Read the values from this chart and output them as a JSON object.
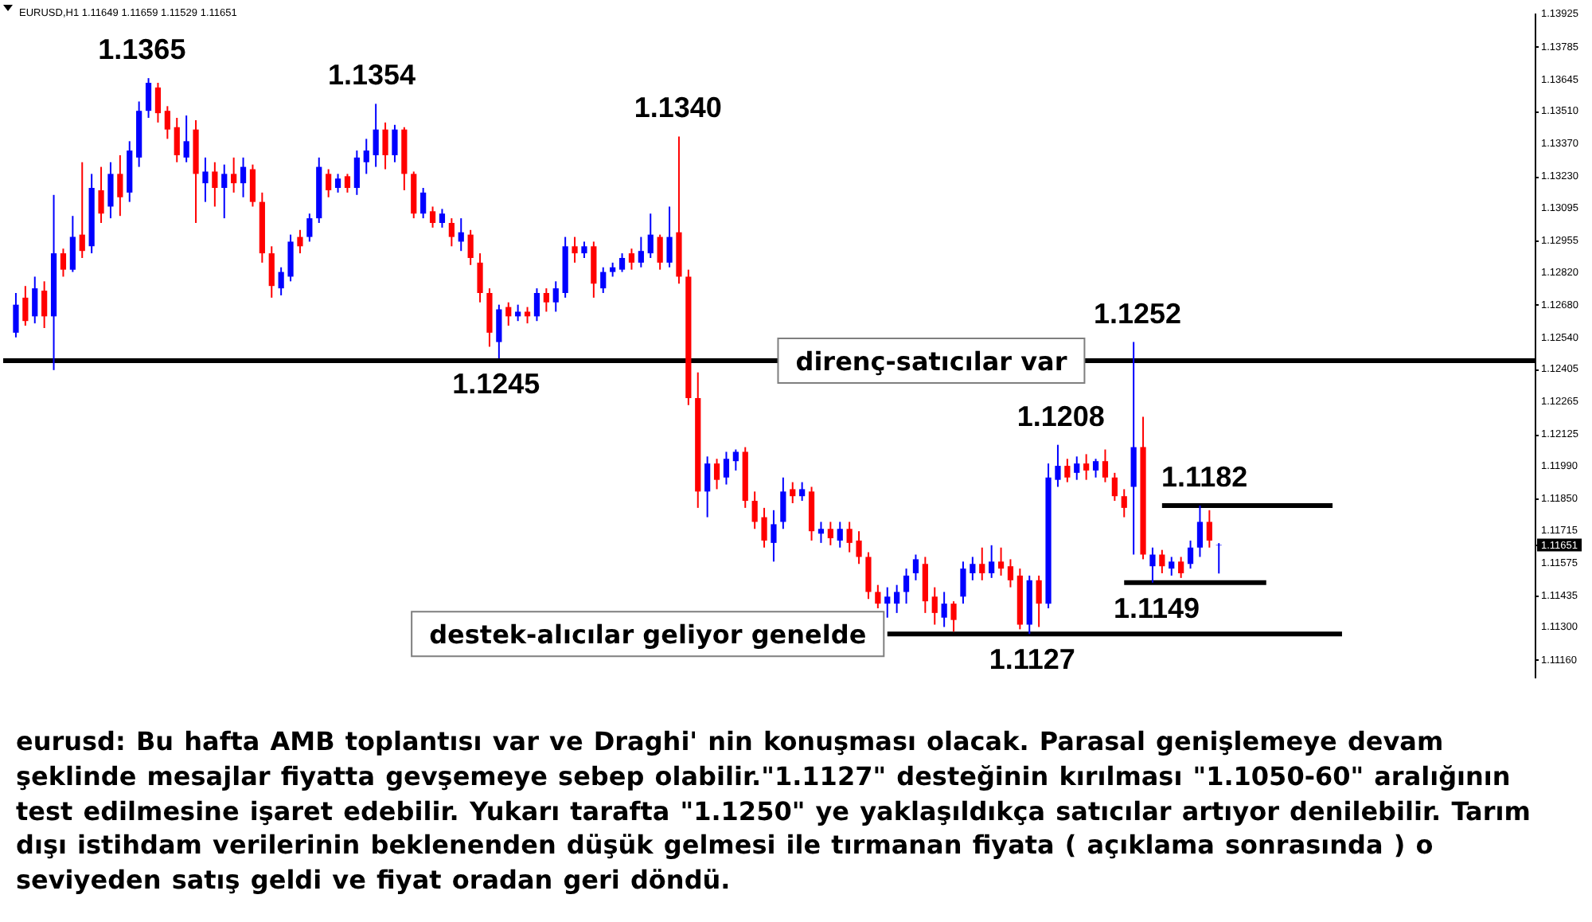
{
  "chart_data": {
    "type": "candlestick",
    "title": "EURUSD,H1 1.11649 1.11659 1.11529 1.11651",
    "categories": [
      null,
      null,
      null,
      null,
      null,
      null,
      null,
      null,
      null,
      null,
      null,
      null,
      null,
      null,
      null,
      null,
      null,
      null,
      null,
      null,
      null,
      null,
      null,
      null,
      null,
      null,
      null,
      null,
      null,
      null,
      null,
      null,
      null,
      null,
      null,
      null,
      null,
      null,
      null,
      null,
      null,
      null,
      null,
      null,
      null,
      null,
      null,
      null,
      null,
      null,
      null,
      null,
      null,
      null,
      null,
      null,
      null,
      null,
      null,
      null,
      null,
      null,
      null,
      null,
      null,
      null,
      null,
      null,
      null,
      null,
      null,
      null,
      null,
      null,
      null,
      null,
      null,
      null,
      null,
      null,
      null,
      null,
      null,
      null,
      null,
      null,
      null,
      null,
      null,
      null,
      null,
      null,
      null,
      null,
      null,
      null,
      null,
      null,
      null,
      null,
      null,
      null,
      null,
      null,
      null,
      null,
      null,
      null,
      null,
      null,
      null,
      null,
      null,
      null,
      null,
      null,
      null,
      null,
      null,
      null,
      null,
      null,
      null,
      null,
      null,
      null,
      null,
      null,
      null,
      null,
      null,
      null,
      null,
      null,
      null,
      null,
      null,
      null,
      null,
      null,
      null,
      null,
      null,
      null,
      null,
      null,
      null,
      null,
      null,
      null,
      null,
      null,
      null,
      null,
      null,
      null,
      null,
      null,
      null,
      null
    ],
    "ohlc": [
      [
        1.1256,
        1.1273,
        1.1254,
        1.1268
      ],
      [
        1.1271,
        1.1276,
        1.1259,
        1.1261
      ],
      [
        1.1263,
        1.128,
        1.126,
        1.1275
      ],
      [
        1.1274,
        1.1278,
        1.1258,
        1.1263
      ],
      [
        1.1263,
        1.1315,
        1.124,
        1.129
      ],
      [
        1.129,
        1.1292,
        1.128,
        1.1283
      ],
      [
        1.1283,
        1.1306,
        1.1282,
        1.1297
      ],
      [
        1.1298,
        1.1329,
        1.1288,
        1.1291
      ],
      [
        1.1293,
        1.1324,
        1.129,
        1.1318
      ],
      [
        1.1317,
        1.1327,
        1.1303,
        1.1307
      ],
      [
        1.131,
        1.1329,
        1.1305,
        1.1324
      ],
      [
        1.1324,
        1.1332,
        1.1306,
        1.1314
      ],
      [
        1.1316,
        1.1338,
        1.1312,
        1.1334
      ],
      [
        1.1331,
        1.1355,
        1.1327,
        1.1351
      ],
      [
        1.1351,
        1.1365,
        1.1348,
        1.1363
      ],
      [
        1.1361,
        1.1363,
        1.1346,
        1.135
      ],
      [
        1.1351,
        1.1353,
        1.1339,
        1.1343
      ],
      [
        1.1344,
        1.1348,
        1.1329,
        1.1332
      ],
      [
        1.1331,
        1.1349,
        1.1329,
        1.1338
      ],
      [
        1.1343,
        1.1347,
        1.1303,
        1.1324
      ],
      [
        1.132,
        1.1331,
        1.1312,
        1.1325
      ],
      [
        1.1325,
        1.1329,
        1.131,
        1.1318
      ],
      [
        1.1318,
        1.1328,
        1.1305,
        1.1324
      ],
      [
        1.1324,
        1.1331,
        1.1316,
        1.132
      ],
      [
        1.132,
        1.1331,
        1.1314,
        1.1327
      ],
      [
        1.1326,
        1.1328,
        1.131,
        1.1312
      ],
      [
        1.1312,
        1.1316,
        1.1286,
        1.129
      ],
      [
        1.129,
        1.1293,
        1.1271,
        1.1276
      ],
      [
        1.1275,
        1.1284,
        1.1272,
        1.1282
      ],
      [
        1.128,
        1.1298,
        1.1278,
        1.1295
      ],
      [
        1.1297,
        1.13,
        1.129,
        1.1293
      ],
      [
        1.1297,
        1.1307,
        1.1295,
        1.1305
      ],
      [
        1.1305,
        1.1331,
        1.1303,
        1.1327
      ],
      [
        1.1324,
        1.1326,
        1.1314,
        1.1317
      ],
      [
        1.1318,
        1.1324,
        1.1316,
        1.1322
      ],
      [
        1.1323,
        1.1324,
        1.1316,
        1.1318
      ],
      [
        1.1318,
        1.1334,
        1.1315,
        1.1331
      ],
      [
        1.1329,
        1.1339,
        1.1324,
        1.1334
      ],
      [
        1.1332,
        1.1354,
        1.1327,
        1.1343
      ],
      [
        1.1343,
        1.1346,
        1.1326,
        1.1332
      ],
      [
        1.1332,
        1.1345,
        1.1329,
        1.1343
      ],
      [
        1.1343,
        1.1344,
        1.1317,
        1.1324
      ],
      [
        1.1324,
        1.1325,
        1.1305,
        1.1307
      ],
      [
        1.1307,
        1.1318,
        1.1305,
        1.1316
      ],
      [
        1.1308,
        1.131,
        1.1301,
        1.1303
      ],
      [
        1.1303,
        1.1309,
        1.1301,
        1.1307
      ],
      [
        1.1303,
        1.1305,
        1.1293,
        1.1297
      ],
      [
        1.1295,
        1.1305,
        1.1291,
        1.1299
      ],
      [
        1.1298,
        1.13,
        1.1285,
        1.1288
      ],
      [
        1.1286,
        1.129,
        1.1269,
        1.1273
      ],
      [
        1.1273,
        1.1275,
        1.125,
        1.1256
      ],
      [
        1.1252,
        1.1268,
        1.1245,
        1.1266
      ],
      [
        1.1267,
        1.1269,
        1.1259,
        1.1263
      ],
      [
        1.1263,
        1.1268,
        1.1261,
        1.1265
      ],
      [
        1.1265,
        1.1267,
        1.126,
        1.1263
      ],
      [
        1.1263,
        1.1275,
        1.1261,
        1.1273
      ],
      [
        1.1273,
        1.1275,
        1.1265,
        1.1269
      ],
      [
        1.1269,
        1.1278,
        1.1265,
        1.1275
      ],
      [
        1.1273,
        1.1297,
        1.1271,
        1.1293
      ],
      [
        1.1293,
        1.1297,
        1.1286,
        1.129
      ],
      [
        1.129,
        1.1295,
        1.1288,
        1.1293
      ],
      [
        1.1293,
        1.1295,
        1.1271,
        1.1277
      ],
      [
        1.1275,
        1.1284,
        1.1273,
        1.1282
      ],
      [
        1.1282,
        1.1286,
        1.128,
        1.1284
      ],
      [
        1.1283,
        1.129,
        1.1282,
        1.1288
      ],
      [
        1.129,
        1.1292,
        1.1283,
        1.1286
      ],
      [
        1.1286,
        1.1297,
        1.1284,
        1.1291
      ],
      [
        1.129,
        1.1307,
        1.1288,
        1.1298
      ],
      [
        1.1297,
        1.1298,
        1.1283,
        1.1286
      ],
      [
        1.1286,
        1.131,
        1.1284,
        1.1297
      ],
      [
        1.1299,
        1.134,
        1.1277,
        1.128
      ],
      [
        1.128,
        1.1283,
        1.1225,
        1.1228
      ],
      [
        1.1228,
        1.1239,
        1.1181,
        1.1188
      ],
      [
        1.1188,
        1.1203,
        1.1177,
        1.12
      ],
      [
        1.12,
        1.1202,
        1.1189,
        1.1193
      ],
      [
        1.1194,
        1.1205,
        1.1191,
        1.1202
      ],
      [
        1.1201,
        1.1206,
        1.1197,
        1.1205
      ],
      [
        1.1205,
        1.1207,
        1.1181,
        1.1184
      ],
      [
        1.1184,
        1.1188,
        1.1172,
        1.1175
      ],
      [
        1.1177,
        1.1181,
        1.1164,
        1.1167
      ],
      [
        1.1166,
        1.118,
        1.1158,
        1.1174
      ],
      [
        1.1175,
        1.1194,
        1.1172,
        1.1188
      ],
      [
        1.1189,
        1.1192,
        1.1183,
        1.1186
      ],
      [
        1.1186,
        1.1192,
        1.1184,
        1.1189
      ],
      [
        1.1188,
        1.119,
        1.1167,
        1.1171
      ],
      [
        1.117,
        1.1175,
        1.1166,
        1.1172
      ],
      [
        1.1172,
        1.1175,
        1.1165,
        1.1168
      ],
      [
        1.1167,
        1.1175,
        1.1164,
        1.1172
      ],
      [
        1.1172,
        1.1175,
        1.1162,
        1.1166
      ],
      [
        1.1167,
        1.1171,
        1.1157,
        1.116
      ],
      [
        1.116,
        1.1162,
        1.1142,
        1.1145
      ],
      [
        1.1145,
        1.1148,
        1.1138,
        1.114
      ],
      [
        1.114,
        1.1147,
        1.1134,
        1.1143
      ],
      [
        1.114,
        1.1148,
        1.1136,
        1.1145
      ],
      [
        1.1145,
        1.1155,
        1.114,
        1.1152
      ],
      [
        1.1153,
        1.1161,
        1.115,
        1.1159
      ],
      [
        1.1157,
        1.116,
        1.1136,
        1.1141
      ],
      [
        1.1143,
        1.1147,
        1.1131,
        1.1136
      ],
      [
        1.1134,
        1.1145,
        1.113,
        1.114
      ],
      [
        1.114,
        1.1141,
        1.1128,
        1.1133
      ],
      [
        1.1143,
        1.1158,
        1.114,
        1.1155
      ],
      [
        1.1153,
        1.116,
        1.115,
        1.1157
      ],
      [
        1.1157,
        1.1164,
        1.115,
        1.1153
      ],
      [
        1.1153,
        1.1165,
        1.1151,
        1.1158
      ],
      [
        1.1158,
        1.1164,
        1.1152,
        1.1155
      ],
      [
        1.1156,
        1.1159,
        1.1147,
        1.115
      ],
      [
        1.1152,
        1.1155,
        1.1129,
        1.1131
      ],
      [
        1.1131,
        1.1152,
        1.1127,
        1.115
      ],
      [
        1.115,
        1.1152,
        1.113,
        1.114
      ],
      [
        1.114,
        1.12,
        1.1138,
        1.1194
      ],
      [
        1.1193,
        1.1208,
        1.119,
        1.1199
      ],
      [
        1.1199,
        1.1202,
        1.1192,
        1.1194
      ],
      [
        1.1196,
        1.1203,
        1.1193,
        1.12
      ],
      [
        1.12,
        1.1204,
        1.1193,
        1.1197
      ],
      [
        1.1197,
        1.1202,
        1.1194,
        1.1201
      ],
      [
        1.1201,
        1.1206,
        1.1192,
        1.1194
      ],
      [
        1.1194,
        1.1196,
        1.1184,
        1.1186
      ],
      [
        1.1186,
        1.1189,
        1.1177,
        1.1181
      ],
      [
        1.119,
        1.1252,
        1.1161,
        1.1207
      ],
      [
        1.1207,
        1.122,
        1.1159,
        1.1161
      ],
      [
        1.1156,
        1.1164,
        1.1149,
        1.1161
      ],
      [
        1.1161,
        1.1163,
        1.1153,
        1.1156
      ],
      [
        1.1155,
        1.116,
        1.1152,
        1.1158
      ],
      [
        1.1158,
        1.116,
        1.1151,
        1.1153
      ],
      [
        1.1157,
        1.1167,
        1.1155,
        1.1164
      ],
      [
        1.1164,
        1.1182,
        1.116,
        1.1175
      ],
      [
        1.1175,
        1.118,
        1.1164,
        1.1167
      ],
      [
        1.11649,
        1.11659,
        1.11529,
        1.11651
      ],
      null,
      null,
      null,
      null,
      null,
      null,
      null,
      null,
      null,
      null,
      null,
      null,
      null,
      null,
      null,
      null,
      null,
      null,
      null,
      null,
      null,
      null,
      null,
      null,
      null,
      null,
      null,
      null,
      null,
      null,
      null,
      null
    ],
    "colors": [
      "#0000ff",
      "#ff0000",
      "#0000ff",
      "#ff0000",
      "#0000ff",
      "#ff0000",
      "#0000ff",
      "#ff0000",
      "#0000ff",
      "#ff0000",
      "#0000ff",
      "#ff0000",
      "#0000ff",
      "#0000ff",
      "#0000ff",
      "#ff0000",
      "#ff0000",
      "#ff0000",
      "#0000ff",
      "#ff0000",
      "#0000ff",
      "#ff0000",
      "#0000ff",
      "#ff0000",
      "#0000ff",
      "#ff0000",
      "#ff0000",
      "#ff0000",
      "#0000ff",
      "#0000ff",
      "#ff0000",
      "#0000ff",
      "#0000ff",
      "#ff0000",
      "#0000ff",
      "#ff0000",
      "#0000ff",
      "#0000ff",
      "#0000ff",
      "#ff0000",
      "#0000ff",
      "#ff0000",
      "#ff0000",
      "#0000ff",
      "#ff0000",
      "#0000ff",
      "#ff0000",
      "#0000ff",
      "#ff0000",
      "#ff0000",
      "#ff0000",
      "#0000ff",
      "#ff0000",
      "#0000ff",
      "#ff0000",
      "#0000ff",
      "#ff0000",
      "#0000ff",
      "#0000ff",
      "#ff0000",
      "#0000ff",
      "#ff0000",
      "#0000ff",
      "#0000ff",
      "#0000ff",
      "#ff0000",
      "#0000ff",
      "#0000ff",
      "#ff0000",
      "#0000ff",
      "#ff0000",
      "#ff0000",
      "#ff0000",
      "#0000ff",
      "#ff0000",
      "#0000ff",
      "#0000ff",
      "#ff0000",
      "#ff0000",
      "#ff0000",
      "#0000ff",
      "#0000ff",
      "#ff0000",
      "#0000ff",
      "#ff0000",
      "#0000ff",
      "#ff0000",
      "#0000ff",
      "#ff0000",
      "#ff0000",
      "#ff0000",
      "#ff0000",
      "#0000ff",
      "#0000ff",
      "#0000ff",
      "#0000ff",
      "#ff0000",
      "#ff0000",
      "#0000ff",
      "#ff0000",
      "#0000ff",
      "#0000ff",
      "#ff0000",
      "#0000ff",
      "#ff0000",
      "#ff0000",
      "#ff0000",
      "#0000ff",
      "#ff0000",
      "#0000ff",
      "#0000ff",
      "#ff0000",
      "#0000ff",
      "#ff0000",
      "#0000ff",
      "#ff0000",
      "#ff0000",
      "#ff0000",
      "#0000ff",
      "#ff0000",
      "#0000ff",
      "#ff0000",
      "#0000ff",
      "#ff0000",
      "#0000ff",
      "#0000ff",
      "#ff0000",
      "#0000ff",
      null,
      null,
      null,
      null,
      null,
      null,
      null,
      null,
      null,
      null,
      null,
      null,
      null,
      null,
      null,
      null,
      null,
      null,
      null,
      null,
      null,
      null,
      null,
      null,
      null,
      null,
      null,
      null,
      null,
      null,
      null,
      null
    ],
    "series": [
      {
        "type": "line",
        "name": "destek-alıcılar geliyor genelde",
        "color": "#000000",
        "values": [
          null,
          null,
          null,
          null,
          null,
          null,
          null,
          null,
          null,
          null,
          null,
          null,
          null,
          null,
          null,
          null,
          null,
          null,
          null,
          null,
          null,
          null,
          null,
          null,
          null,
          null,
          null,
          null,
          null,
          null,
          null,
          null,
          null,
          null,
          null,
          null,
          null,
          null,
          null,
          null,
          null,
          null,
          null,
          null,
          null,
          null,
          null,
          null,
          null,
          null,
          null,
          null,
          null,
          null,
          null,
          null,
          null,
          null,
          null,
          null,
          null,
          null,
          null,
          null,
          null,
          null,
          null,
          null,
          null,
          null,
          null,
          null,
          null,
          null,
          null,
          null,
          null,
          null,
          null,
          null,
          null,
          null,
          null,
          null,
          null,
          null,
          null,
          null,
          null,
          null,
          null,
          null,
          1.1127,
          1.1127,
          1.1127,
          1.1127,
          1.1127,
          1.1127,
          1.1127,
          1.1127,
          1.1127,
          1.1127,
          1.1127,
          1.1127,
          1.1127,
          1.1127,
          1.1127,
          1.1127,
          1.1127,
          1.1127,
          1.1127,
          1.1127,
          1.1127,
          1.1127,
          1.1127,
          1.1127,
          1.1127,
          1.1127,
          1.1127,
          1.1127,
          1.1127,
          1.1127,
          1.1127,
          1.1127,
          1.1127,
          1.1127,
          1.1127,
          1.1127,
          1.1127,
          1.1127,
          1.1127,
          1.1127,
          1.1127,
          1.1127,
          1.1127,
          1.1127,
          1.1127,
          1.1127,
          1.1127,
          1.1127,
          1.1127,
          null,
          null,
          null,
          null,
          null,
          null,
          null,
          null,
          null,
          null,
          null,
          null,
          null,
          null,
          null,
          null,
          null,
          null,
          null
        ]
      },
      {
        "type": "line",
        "color": "#000000",
        "values": [
          null,
          null,
          null,
          null,
          null,
          null,
          null,
          null,
          null,
          null,
          null,
          null,
          null,
          null,
          null,
          null,
          null,
          null,
          null,
          null,
          null,
          null,
          null,
          null,
          null,
          null,
          null,
          null,
          null,
          null,
          null,
          null,
          null,
          null,
          null,
          null,
          null,
          null,
          null,
          null,
          null,
          null,
          null,
          null,
          null,
          null,
          null,
          null,
          null,
          null,
          null,
          null,
          null,
          null,
          null,
          null,
          null,
          null,
          null,
          null,
          null,
          null,
          null,
          null,
          null,
          null,
          null,
          null,
          null,
          null,
          null,
          null,
          null,
          null,
          null,
          null,
          null,
          null,
          null,
          null,
          null,
          null,
          null,
          null,
          null,
          null,
          null,
          null,
          null,
          null,
          null,
          null,
          null,
          null,
          null,
          null,
          null,
          null,
          null,
          null,
          null,
          null,
          null,
          null,
          null,
          null,
          null,
          null,
          null,
          null,
          null,
          null,
          null,
          null,
          null,
          null,
          null,
          null,
          null,
          null,
          null,
          1.1182,
          1.1182,
          1.1182,
          1.1182,
          1.1182,
          1.1182,
          1.1182,
          1.1182,
          1.1182,
          1.1182,
          1.1182,
          1.1182,
          1.1182,
          1.1182,
          1.1182,
          1.1182,
          1.1182,
          1.1182,
          1.1182,
          null,
          null,
          null,
          null,
          null,
          null,
          null,
          null,
          null,
          null,
          null,
          null,
          null,
          null,
          null,
          null,
          null,
          null,
          null,
          null
        ]
      },
      {
        "type": "line",
        "color": "#000000",
        "values": [
          null,
          null,
          null,
          null,
          null,
          null,
          null,
          null,
          null,
          null,
          null,
          null,
          null,
          null,
          null,
          null,
          null,
          null,
          null,
          null,
          null,
          null,
          null,
          null,
          null,
          null,
          null,
          null,
          null,
          null,
          null,
          null,
          null,
          null,
          null,
          null,
          null,
          null,
          null,
          null,
          null,
          null,
          null,
          null,
          null,
          null,
          null,
          null,
          null,
          null,
          null,
          null,
          null,
          null,
          null,
          null,
          null,
          null,
          null,
          null,
          null,
          null,
          null,
          null,
          null,
          null,
          null,
          null,
          null,
          null,
          null,
          null,
          null,
          null,
          null,
          null,
          null,
          null,
          null,
          null,
          null,
          null,
          null,
          null,
          null,
          null,
          null,
          null,
          null,
          null,
          null,
          null,
          null,
          null,
          null,
          null,
          null,
          null,
          null,
          null,
          null,
          null,
          null,
          null,
          null,
          null,
          null,
          null,
          null,
          null,
          null,
          null,
          null,
          null,
          null,
          null,
          null,
          1.1149,
          1.1149,
          1.1149,
          1.1149,
          1.1149,
          1.1149,
          1.1149,
          1.1149,
          1.1149,
          1.1149,
          1.1149,
          1.1149,
          1.1149,
          1.1149,
          1.1149,
          1.1149,
          null,
          null,
          null,
          null,
          null,
          null,
          null,
          null,
          null,
          null,
          null,
          null,
          null,
          null,
          null,
          null,
          null,
          null,
          null,
          null,
          null,
          null,
          null,
          null,
          null,
          null,
          null
        ]
      }
    ],
    "ylim": [
      1.1108,
      1.1393
    ],
    "yticks": [
      1.13925,
      1.13785,
      1.13645,
      {
        "value": 1.1351,
        "label": "1.13510"
      },
      {
        "value": 1.1337,
        "label": "1.13370"
      },
      {
        "value": 1.1323,
        "label": "1.13230"
      },
      1.13095,
      1.12955,
      {
        "value": 1.1282,
        "label": "1.12820"
      },
      {
        "value": 1.1268,
        "label": "1.12680"
      },
      {
        "value": 1.1254,
        "label": "1.12540"
      },
      1.12405,
      1.12265,
      1.12125,
      {
        "value": 1.1199,
        "label": "1.11990"
      },
      {
        "value": 1.1185,
        "label": "1.11850"
      },
      1.11715,
      1.11651,
      1.11575,
      1.11435,
      {
        "value": 1.113,
        "label": "1.11300"
      },
      {
        "value": 1.1116,
        "label": "1.11160"
      }
    ],
    "tick_labels": "y",
    "ref_lines": [
      {
        "axis": "y",
        "value": 1.1244,
        "label": "direnç-satıcılar var",
        "color": "#000000"
      }
    ],
    "annotations": [
      {
        "text": "1.1365",
        "y": 1.1365
      },
      {
        "text": "1.1354",
        "y": 1.1354
      },
      {
        "text": "1.1340",
        "y": 1.134
      },
      {
        "text": "1.1245",
        "y": 1.1245
      },
      {
        "text": "1.1252",
        "y": 1.1252
      },
      {
        "text": "1.1208",
        "y": 1.1208
      },
      {
        "text": "1.1182",
        "y": 1.1182
      },
      {
        "text": "1.1149",
        "y": 1.1149
      },
      {
        "text": "1.1127",
        "y": 1.1127
      },
      "eurusd: Bu hafta AMB toplantısı var ve Draghi' nin konuşması olacak. Parasal genişlemeye devam şeklinde mesajlar fiyatta gevşemeye sebep olabilir.\"1.1127\" desteğinin kırılması \"1.1050-60\" aralığının test edilmesine işaret edebilir. Yukarı tarafta \"1.1250\" ye yaklaşıldıkça satıcılar artıyor denilebilir. Tarım dışı istihdam verilerinin beklenenden düşük gelmesi ile tırmanan fiyata ( açıklama sonrasında ) o seviyeden satış geldi ve fiyat oradan geri döndü."
    ]
  }
}
